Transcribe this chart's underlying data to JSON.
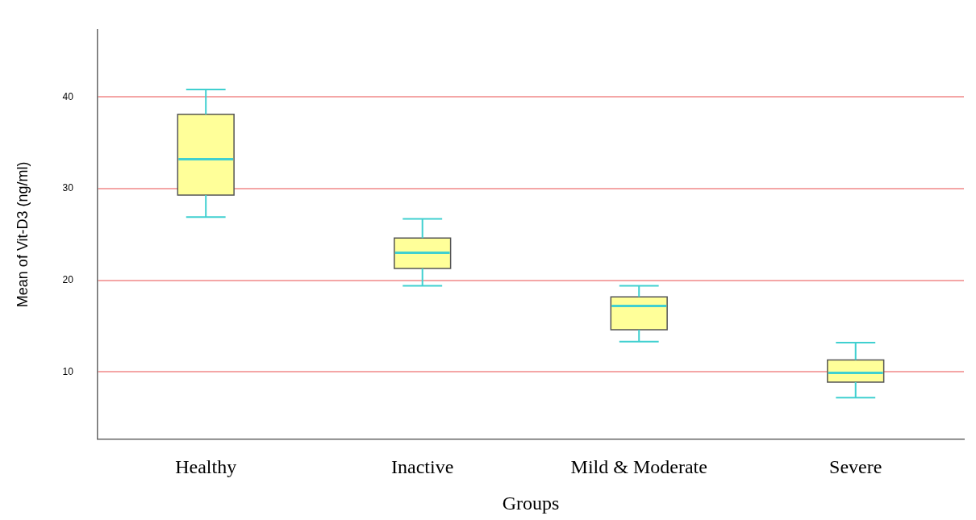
{
  "chart_data": {
    "type": "box",
    "xlabel": "Groups",
    "ylabel": "Mean of Vit-D3 (ng/ml)",
    "categories": [
      "Healthy",
      "Inactive",
      "Mild & Moderate",
      "Severe"
    ],
    "color": "#ffff99",
    "boxes": [
      {
        "low": 26.9,
        "q1": 29.3,
        "median": 33.2,
        "q3": 38.1,
        "high": 40.8
      },
      {
        "low": 19.4,
        "q1": 21.3,
        "median": 23.0,
        "q3": 24.6,
        "high": 26.7
      },
      {
        "low": 13.3,
        "q1": 14.6,
        "median": 17.2,
        "q3": 18.2,
        "high": 19.4
      },
      {
        "low": 7.2,
        "q1": 8.9,
        "median": 9.9,
        "q3": 11.3,
        "high": 13.2
      }
    ],
    "ylim": [
      2.7,
      47.3
    ],
    "yticks": [
      10,
      20,
      30,
      40
    ],
    "grid": "y"
  }
}
